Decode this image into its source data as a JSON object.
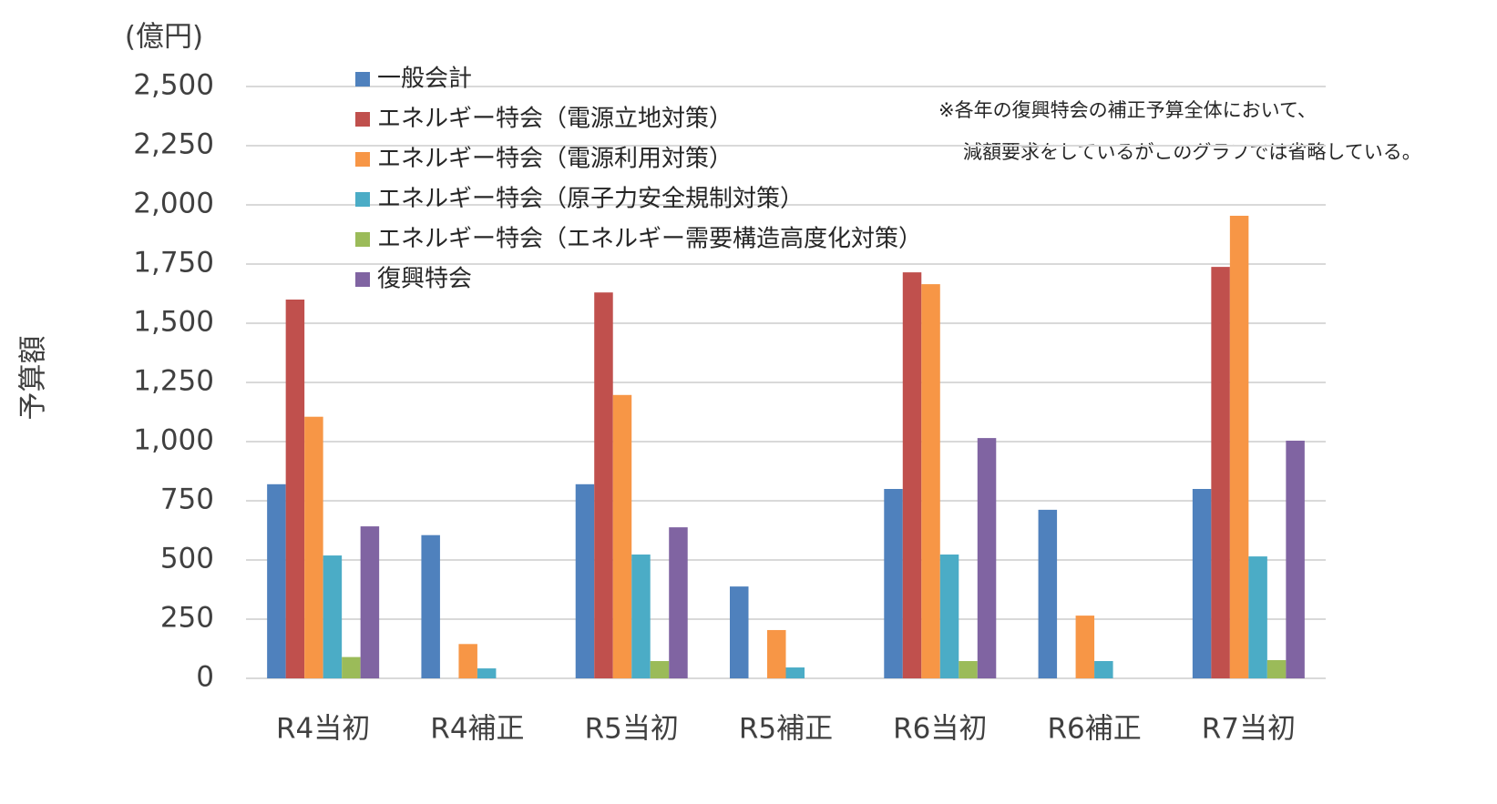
{
  "chart_data": {
    "type": "bar",
    "unit_label": "(億円)",
    "y_axis_title": "予算額",
    "note": [
      "※各年の復興特会の補正予算全体において、",
      "減額要求をしているがこのグラフでは省略している。"
    ],
    "categories": [
      "R4当初",
      "R4補正",
      "R5当初",
      "R5補正",
      "R6当初",
      "R6補正",
      "R7当初"
    ],
    "series": [
      {
        "name": "一般会計",
        "color": "#4f81bd",
        "values": [
          820,
          605,
          820,
          388,
          800,
          712,
          800
        ]
      },
      {
        "name": "エネルギー特会（電源立地対策）",
        "color": "#c0504d",
        "values": [
          1600,
          null,
          1630,
          null,
          1715,
          null,
          1738
        ]
      },
      {
        "name": "エネルギー特会（電源利用対策）",
        "color": "#f79646",
        "values": [
          1105,
          145,
          1197,
          204,
          1665,
          265,
          1954
        ]
      },
      {
        "name": "エネルギー特会（原子力安全規制対策）",
        "color": "#4bacc6",
        "values": [
          519,
          42,
          523,
          46,
          523,
          73,
          515
        ]
      },
      {
        "name": "エネルギー特会（エネルギー需要構造高度化対策）",
        "color": "#9bbb59",
        "values": [
          90,
          null,
          73,
          null,
          73,
          null,
          77
        ]
      },
      {
        "name": "復興特会",
        "color": "#8064a2",
        "values": [
          642,
          null,
          638,
          null,
          1015,
          null,
          1004
        ]
      }
    ],
    "ylim": [
      0,
      2500
    ],
    "yticks": [
      0,
      250,
      500,
      750,
      {
        "value": 1000,
        "label": "1,000"
      },
      {
        "value": 1250,
        "label": "1,250"
      },
      {
        "value": 1500,
        "label": "1,500"
      },
      {
        "value": 1750,
        "label": "1,750"
      },
      {
        "value": 2000,
        "label": "2,000"
      },
      {
        "value": 2250,
        "label": "2,250"
      },
      {
        "value": 2500,
        "label": "2,500"
      }
    ],
    "grid": true
  }
}
